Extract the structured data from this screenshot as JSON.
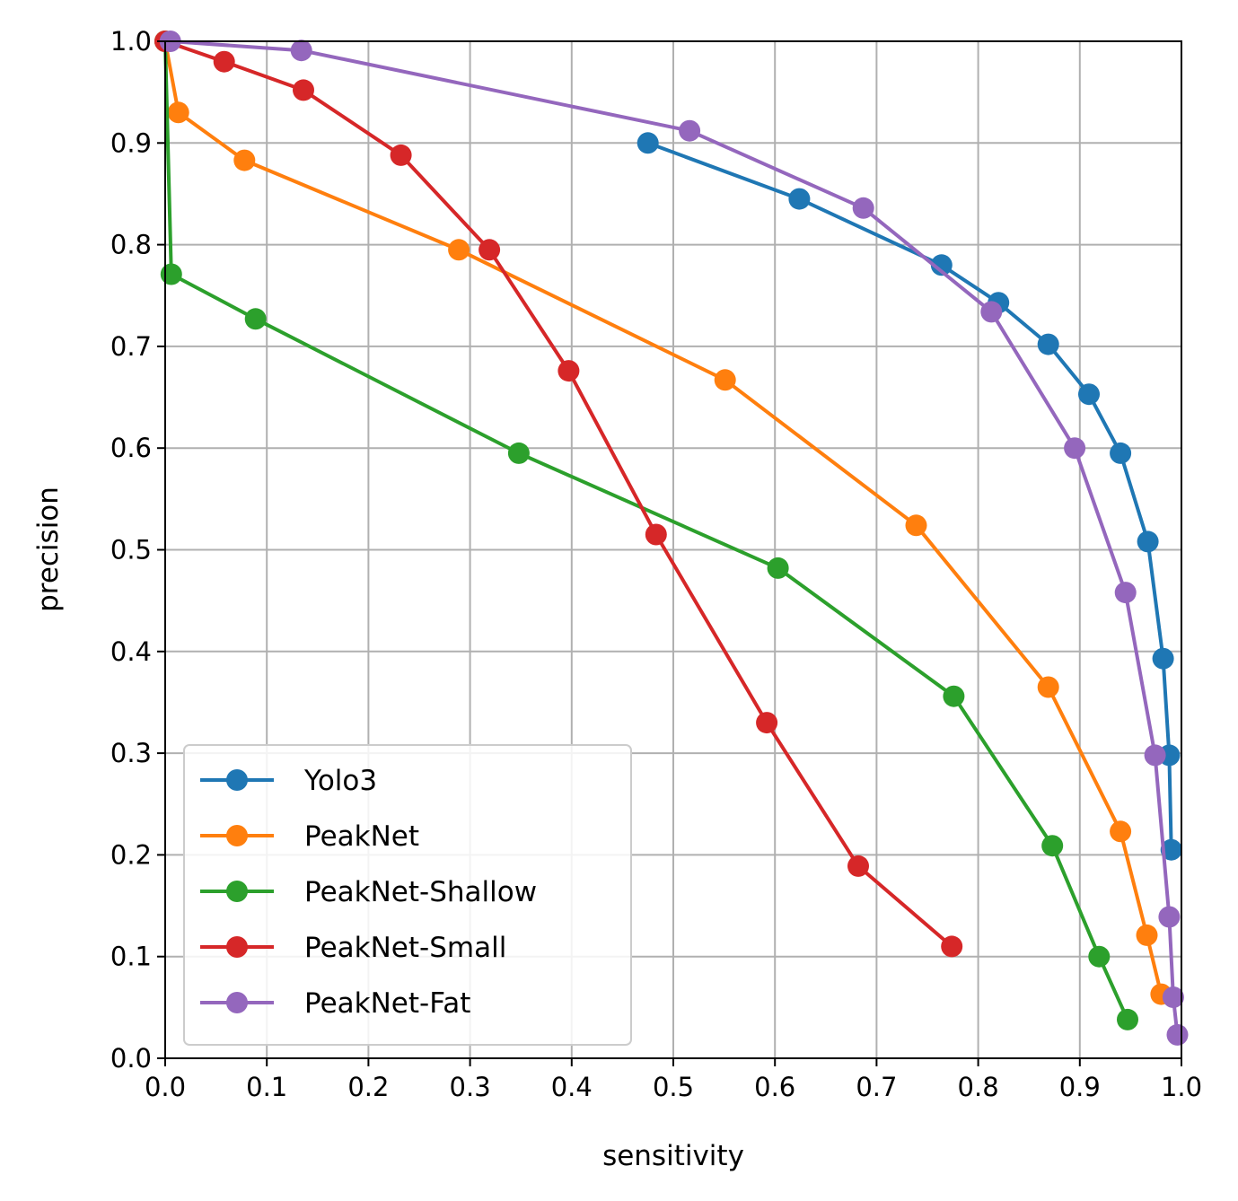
{
  "chart_data": {
    "type": "line",
    "title": "",
    "xlabel": "sensitivity",
    "ylabel": "precision",
    "xlim": [
      0.0,
      1.0
    ],
    "ylim": [
      0.0,
      1.0
    ],
    "xticks": [
      "0.0",
      "0.1",
      "0.2",
      "0.3",
      "0.4",
      "0.5",
      "0.6",
      "0.7",
      "0.8",
      "0.9",
      "1.0"
    ],
    "yticks": [
      "0.0",
      "0.1",
      "0.2",
      "0.3",
      "0.4",
      "0.5",
      "0.6",
      "0.7",
      "0.8",
      "0.9",
      "1.0"
    ],
    "grid": true,
    "legend_position": "lower-left",
    "series": [
      {
        "name": "Yolo3",
        "color": "#1f77b4",
        "points": [
          [
            0.475,
            0.9
          ],
          [
            0.624,
            0.845
          ],
          [
            0.764,
            0.78
          ],
          [
            0.82,
            0.743
          ],
          [
            0.869,
            0.702
          ],
          [
            0.909,
            0.653
          ],
          [
            0.94,
            0.595
          ],
          [
            0.967,
            0.508
          ],
          [
            0.982,
            0.393
          ],
          [
            0.988,
            0.298
          ],
          [
            0.99,
            0.205
          ]
        ]
      },
      {
        "name": "PeakNet",
        "color": "#ff7f0e",
        "points": [
          [
            0.0,
            1.0
          ],
          [
            0.013,
            0.93
          ],
          [
            0.078,
            0.883
          ],
          [
            0.289,
            0.795
          ],
          [
            0.551,
            0.667
          ],
          [
            0.739,
            0.524
          ],
          [
            0.869,
            0.365
          ],
          [
            0.94,
            0.223
          ],
          [
            0.966,
            0.121
          ],
          [
            0.98,
            0.063
          ]
        ]
      },
      {
        "name": "PeakNet-Shallow",
        "color": "#2ca02c",
        "points": [
          [
            0.0,
            1.0
          ],
          [
            0.006,
            0.771
          ],
          [
            0.089,
            0.727
          ],
          [
            0.348,
            0.595
          ],
          [
            0.603,
            0.482
          ],
          [
            0.776,
            0.356
          ],
          [
            0.873,
            0.209
          ],
          [
            0.919,
            0.1
          ],
          [
            0.947,
            0.038
          ]
        ]
      },
      {
        "name": "PeakNet-Small",
        "color": "#d62728",
        "points": [
          [
            0.0,
            1.0
          ],
          [
            0.058,
            0.98
          ],
          [
            0.136,
            0.952
          ],
          [
            0.232,
            0.888
          ],
          [
            0.319,
            0.795
          ],
          [
            0.397,
            0.676
          ],
          [
            0.483,
            0.515
          ],
          [
            0.592,
            0.33
          ],
          [
            0.682,
            0.189
          ],
          [
            0.774,
            0.11
          ]
        ]
      },
      {
        "name": "PeakNet-Fat",
        "color": "#9467bd",
        "points": [
          [
            0.005,
            1.0
          ],
          [
            0.134,
            0.991
          ],
          [
            0.516,
            0.912
          ],
          [
            0.687,
            0.836
          ],
          [
            0.813,
            0.734
          ],
          [
            0.895,
            0.6
          ],
          [
            0.945,
            0.458
          ],
          [
            0.974,
            0.298
          ],
          [
            0.988,
            0.139
          ],
          [
            0.992,
            0.06
          ],
          [
            0.996,
            0.023
          ]
        ]
      }
    ]
  }
}
